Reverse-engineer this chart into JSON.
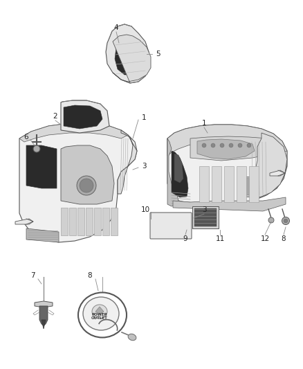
{
  "bg_color": "#ffffff",
  "fig_width": 4.38,
  "fig_height": 5.33,
  "dpi": 100,
  "line_color": "#888888",
  "text_color": "#222222",
  "font_size": 7.5,
  "edge_color": "#555555",
  "dark_fill": "#2a2a2a",
  "light_fill": "#e0e0e0",
  "mid_fill": "#b0b0b0"
}
